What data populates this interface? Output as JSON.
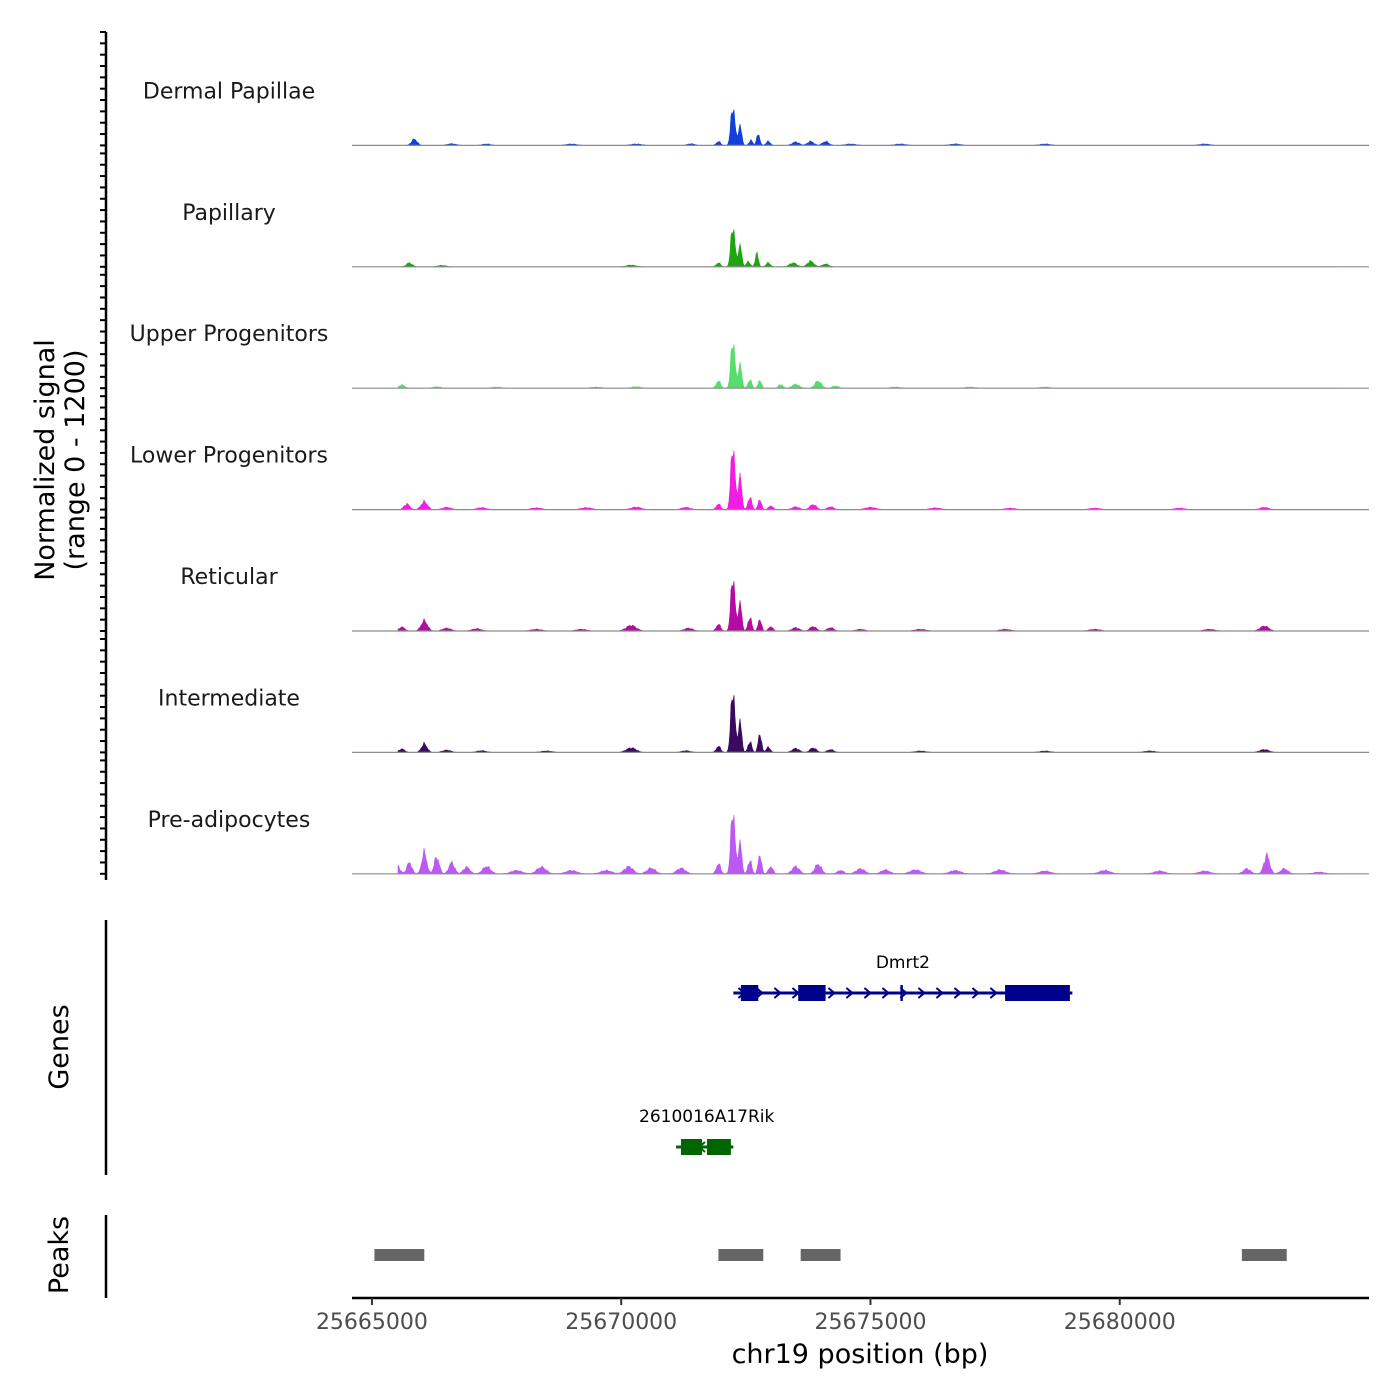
{
  "chart_data": {
    "type": "area",
    "title": "",
    "chromosome": "chr19",
    "xlabel": "chr19 position (bp)",
    "ylabel_line1": "Normalized signal",
    "ylabel_line2": "(range 0 - 1200)",
    "ylim": [
      0,
      1200
    ],
    "xlim": [
      25664600,
      25685000
    ],
    "x_ticks": [
      25665000,
      25670000,
      25675000,
      25680000
    ],
    "x_tick_labels": [
      "25665000",
      "25670000",
      "25675000",
      "25680000"
    ],
    "baseline_color": "#8c8c8c",
    "coverage_tracks": [
      {
        "name": "Dermal Papillae",
        "color": "#1240d9",
        "peaks": [
          [
            25665200,
            60,
            90
          ],
          [
            25665850,
            110,
            80
          ],
          [
            25666600,
            30,
            120
          ],
          [
            25667300,
            25,
            120
          ],
          [
            25669000,
            25,
            150
          ],
          [
            25670300,
            25,
            150
          ],
          [
            25671400,
            30,
            100
          ],
          [
            25671950,
            70,
            60
          ],
          [
            25672240,
            720,
            55
          ],
          [
            25672380,
            350,
            50
          ],
          [
            25672600,
            90,
            50
          ],
          [
            25672750,
            200,
            45
          ],
          [
            25672950,
            70,
            60
          ],
          [
            25673500,
            60,
            100
          ],
          [
            25673800,
            70,
            90
          ],
          [
            25674100,
            70,
            90
          ],
          [
            25674600,
            25,
            150
          ],
          [
            25675600,
            25,
            150
          ],
          [
            25676700,
            25,
            150
          ],
          [
            25678500,
            25,
            150
          ],
          [
            25681700,
            25,
            150
          ]
        ]
      },
      {
        "name": "Papillary",
        "color": "#1ea510",
        "peaks": [
          [
            25665150,
            40,
            90
          ],
          [
            25665750,
            70,
            80
          ],
          [
            25666400,
            25,
            120
          ],
          [
            25670200,
            30,
            140
          ],
          [
            25671950,
            70,
            60
          ],
          [
            25672240,
            750,
            55
          ],
          [
            25672380,
            380,
            50
          ],
          [
            25672550,
            100,
            50
          ],
          [
            25672720,
            230,
            45
          ],
          [
            25672950,
            70,
            60
          ],
          [
            25673450,
            70,
            100
          ],
          [
            25673800,
            100,
            90
          ],
          [
            25674100,
            50,
            90
          ]
        ]
      },
      {
        "name": "Upper Progenitors",
        "color": "#58dd6a",
        "peaks": [
          [
            25665150,
            110,
            70
          ],
          [
            25665600,
            60,
            80
          ],
          [
            25666300,
            25,
            120
          ],
          [
            25667500,
            20,
            150
          ],
          [
            25669500,
            20,
            150
          ],
          [
            25670300,
            25,
            140
          ],
          [
            25671950,
            130,
            60
          ],
          [
            25672240,
            880,
            55
          ],
          [
            25672380,
            430,
            50
          ],
          [
            25672580,
            160,
            50
          ],
          [
            25672780,
            150,
            45
          ],
          [
            25673200,
            70,
            60
          ],
          [
            25673500,
            70,
            100
          ],
          [
            25673950,
            130,
            90
          ],
          [
            25674300,
            40,
            90
          ],
          [
            25675500,
            20,
            150
          ],
          [
            25677000,
            20,
            150
          ],
          [
            25678500,
            20,
            150
          ]
        ]
      },
      {
        "name": "Lower Progenitors",
        "color": "#f01ee0",
        "peaks": [
          [
            25665150,
            60,
            80
          ],
          [
            25665700,
            100,
            80
          ],
          [
            25666050,
            140,
            90
          ],
          [
            25666500,
            40,
            120
          ],
          [
            25667200,
            35,
            130
          ],
          [
            25668300,
            30,
            150
          ],
          [
            25669300,
            35,
            150
          ],
          [
            25670300,
            45,
            140
          ],
          [
            25671300,
            40,
            120
          ],
          [
            25671950,
            100,
            60
          ],
          [
            25672240,
            1180,
            55
          ],
          [
            25672380,
            600,
            50
          ],
          [
            25672580,
            230,
            50
          ],
          [
            25672780,
            190,
            45
          ],
          [
            25673000,
            70,
            60
          ],
          [
            25673500,
            50,
            100
          ],
          [
            25673850,
            90,
            90
          ],
          [
            25674200,
            50,
            90
          ],
          [
            25675000,
            40,
            150
          ],
          [
            25676300,
            30,
            150
          ],
          [
            25677800,
            25,
            150
          ],
          [
            25679500,
            25,
            150
          ],
          [
            25681200,
            25,
            150
          ],
          [
            25682900,
            40,
            120
          ]
        ]
      },
      {
        "name": "Reticular",
        "color": "#b40ba3",
        "peaks": [
          [
            25665150,
            90,
            80
          ],
          [
            25665600,
            70,
            80
          ],
          [
            25666050,
            180,
            90
          ],
          [
            25666500,
            50,
            120
          ],
          [
            25667100,
            40,
            130
          ],
          [
            25668300,
            30,
            150
          ],
          [
            25669200,
            30,
            150
          ],
          [
            25670200,
            100,
            140
          ],
          [
            25671350,
            50,
            120
          ],
          [
            25671950,
            120,
            60
          ],
          [
            25672240,
            1000,
            55
          ],
          [
            25672380,
            500,
            50
          ],
          [
            25672580,
            250,
            50
          ],
          [
            25672780,
            220,
            45
          ],
          [
            25673000,
            80,
            60
          ],
          [
            25673500,
            60,
            100
          ],
          [
            25673850,
            80,
            90
          ],
          [
            25674200,
            60,
            90
          ],
          [
            25674800,
            30,
            120
          ],
          [
            25676000,
            30,
            150
          ],
          [
            25677700,
            30,
            150
          ],
          [
            25679500,
            30,
            150
          ],
          [
            25681800,
            30,
            150
          ],
          [
            25682900,
            90,
            120
          ]
        ]
      },
      {
        "name": "Intermediate",
        "color": "#3a0a5e",
        "peaks": [
          [
            25665150,
            60,
            80
          ],
          [
            25665600,
            60,
            80
          ],
          [
            25666050,
            150,
            80
          ],
          [
            25666500,
            40,
            120
          ],
          [
            25667200,
            30,
            130
          ],
          [
            25668500,
            25,
            150
          ],
          [
            25670200,
            80,
            140
          ],
          [
            25671300,
            30,
            120
          ],
          [
            25671950,
            110,
            60
          ],
          [
            25672240,
            1150,
            55
          ],
          [
            25672380,
            550,
            50
          ],
          [
            25672580,
            200,
            50
          ],
          [
            25672780,
            350,
            45
          ],
          [
            25672950,
            90,
            60
          ],
          [
            25673500,
            70,
            100
          ],
          [
            25673850,
            80,
            90
          ],
          [
            25674200,
            50,
            90
          ],
          [
            25676000,
            25,
            150
          ],
          [
            25678500,
            25,
            150
          ],
          [
            25680600,
            25,
            150
          ],
          [
            25682900,
            50,
            130
          ]
        ]
      },
      {
        "name": "Pre-adipocytes",
        "color": "#bb5af2",
        "peaks": [
          [
            25665150,
            300,
            70
          ],
          [
            25665500,
            160,
            80
          ],
          [
            25665750,
            200,
            70
          ],
          [
            25666050,
            380,
            70
          ],
          [
            25666300,
            300,
            70
          ],
          [
            25666600,
            200,
            80
          ],
          [
            25666900,
            120,
            90
          ],
          [
            25667300,
            130,
            110
          ],
          [
            25667900,
            60,
            150
          ],
          [
            25668400,
            120,
            130
          ],
          [
            25669000,
            60,
            150
          ],
          [
            25669700,
            60,
            150
          ],
          [
            25670150,
            130,
            120
          ],
          [
            25670600,
            100,
            120
          ],
          [
            25671200,
            100,
            120
          ],
          [
            25671950,
            180,
            60
          ],
          [
            25672240,
            1180,
            55
          ],
          [
            25672380,
            560,
            50
          ],
          [
            25672580,
            250,
            50
          ],
          [
            25672780,
            360,
            45
          ],
          [
            25673000,
            130,
            60
          ],
          [
            25673500,
            130,
            100
          ],
          [
            25673950,
            170,
            90
          ],
          [
            25674400,
            60,
            90
          ],
          [
            25674800,
            90,
            120
          ],
          [
            25675300,
            70,
            120
          ],
          [
            25675900,
            70,
            150
          ],
          [
            25676700,
            60,
            150
          ],
          [
            25677600,
            70,
            150
          ],
          [
            25678500,
            50,
            150
          ],
          [
            25679700,
            60,
            150
          ],
          [
            25680800,
            50,
            150
          ],
          [
            25681700,
            50,
            150
          ],
          [
            25682550,
            90,
            100
          ],
          [
            25682950,
            330,
            80
          ],
          [
            25683300,
            90,
            100
          ],
          [
            25684000,
            30,
            150
          ]
        ]
      }
    ],
    "genes": [
      {
        "name": "Dmrt2",
        "color": "#00008b",
        "strand": "+",
        "start": 25672250,
        "end": 25679050,
        "exons": [
          [
            25672400,
            25672750
          ],
          [
            25673550,
            25674100
          ],
          [
            25675600,
            25675650
          ],
          [
            25677700,
            25679000
          ]
        ],
        "row": 1
      },
      {
        "name": "2610016A17Rik",
        "color": "#006400",
        "strand": "-",
        "start": 25671100,
        "end": 25672250,
        "exons": [
          [
            25671200,
            25671620
          ],
          [
            25671720,
            25672200
          ]
        ],
        "row": 2
      }
    ],
    "peaks_track": {
      "color": "#666666",
      "regions": [
        [
          25665050,
          25666050
        ],
        [
          25671950,
          25672850
        ],
        [
          25673600,
          25674400
        ],
        [
          25682450,
          25683350
        ]
      ]
    },
    "panels": {
      "genes": "Genes",
      "peaks": "Peaks"
    }
  }
}
